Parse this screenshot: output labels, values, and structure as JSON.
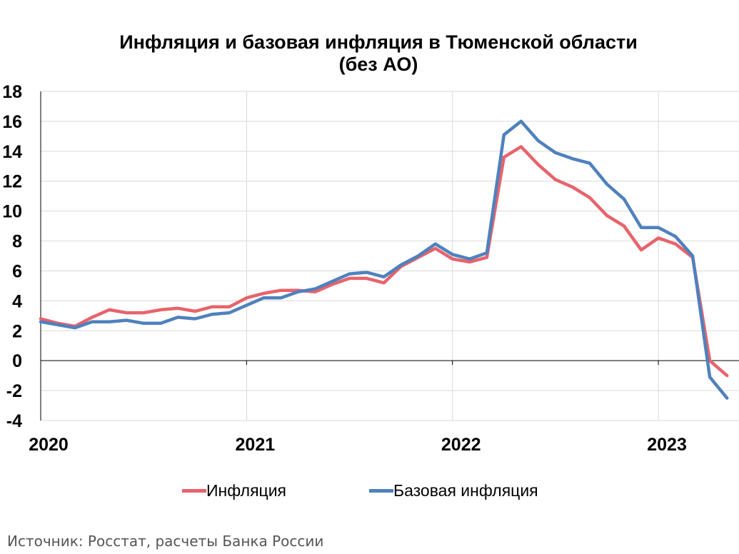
{
  "chart_data": {
    "type": "line",
    "title": "Инфляция и базовая инфляция в Тюменской области",
    "subtitle": "(без АО)",
    "xlabel": "",
    "ylabel": "",
    "ylim": [
      -4,
      18
    ],
    "yticks": [
      "18",
      "16",
      "14",
      "12",
      "10",
      "8",
      "6",
      "4",
      "2",
      "0",
      "-2",
      "-4"
    ],
    "xticks": [
      "2020",
      "2021",
      "2022",
      "2023"
    ],
    "grid": true,
    "legend_position": "bottom",
    "x_start": "2020-01",
    "series": [
      {
        "name": "Инфляция",
        "color": "#e8636b",
        "values": [
          2.8,
          2.5,
          2.3,
          2.9,
          3.4,
          3.2,
          3.2,
          3.4,
          3.5,
          3.3,
          3.6,
          3.6,
          4.2,
          4.5,
          4.7,
          4.7,
          4.6,
          5.1,
          5.5,
          5.5,
          5.2,
          6.3,
          6.9,
          7.5,
          6.8,
          6.6,
          6.9,
          13.6,
          14.3,
          13.1,
          12.1,
          11.6,
          10.9,
          9.7,
          9.0,
          7.4,
          8.2,
          7.8,
          6.9,
          0.0,
          -1.0
        ]
      },
      {
        "name": "Базовая инфляция",
        "color": "#4f81bd",
        "values": [
          2.6,
          2.4,
          2.2,
          2.6,
          2.6,
          2.7,
          2.5,
          2.5,
          2.9,
          2.8,
          3.1,
          3.2,
          3.7,
          4.2,
          4.2,
          4.6,
          4.8,
          5.3,
          5.8,
          5.9,
          5.6,
          6.4,
          7.0,
          7.8,
          7.1,
          6.8,
          7.2,
          15.1,
          16.0,
          14.7,
          13.9,
          13.5,
          13.2,
          11.8,
          10.8,
          8.9,
          8.9,
          8.3,
          7.0,
          -1.1,
          -2.5
        ]
      }
    ]
  },
  "legend": {
    "items": [
      {
        "label": "Инфляция",
        "color": "#e8636b"
      },
      {
        "label": "Базовая инфляция",
        "color": "#4f81bd"
      }
    ]
  },
  "source": "Источник: Росстат, расчеты Банка России"
}
